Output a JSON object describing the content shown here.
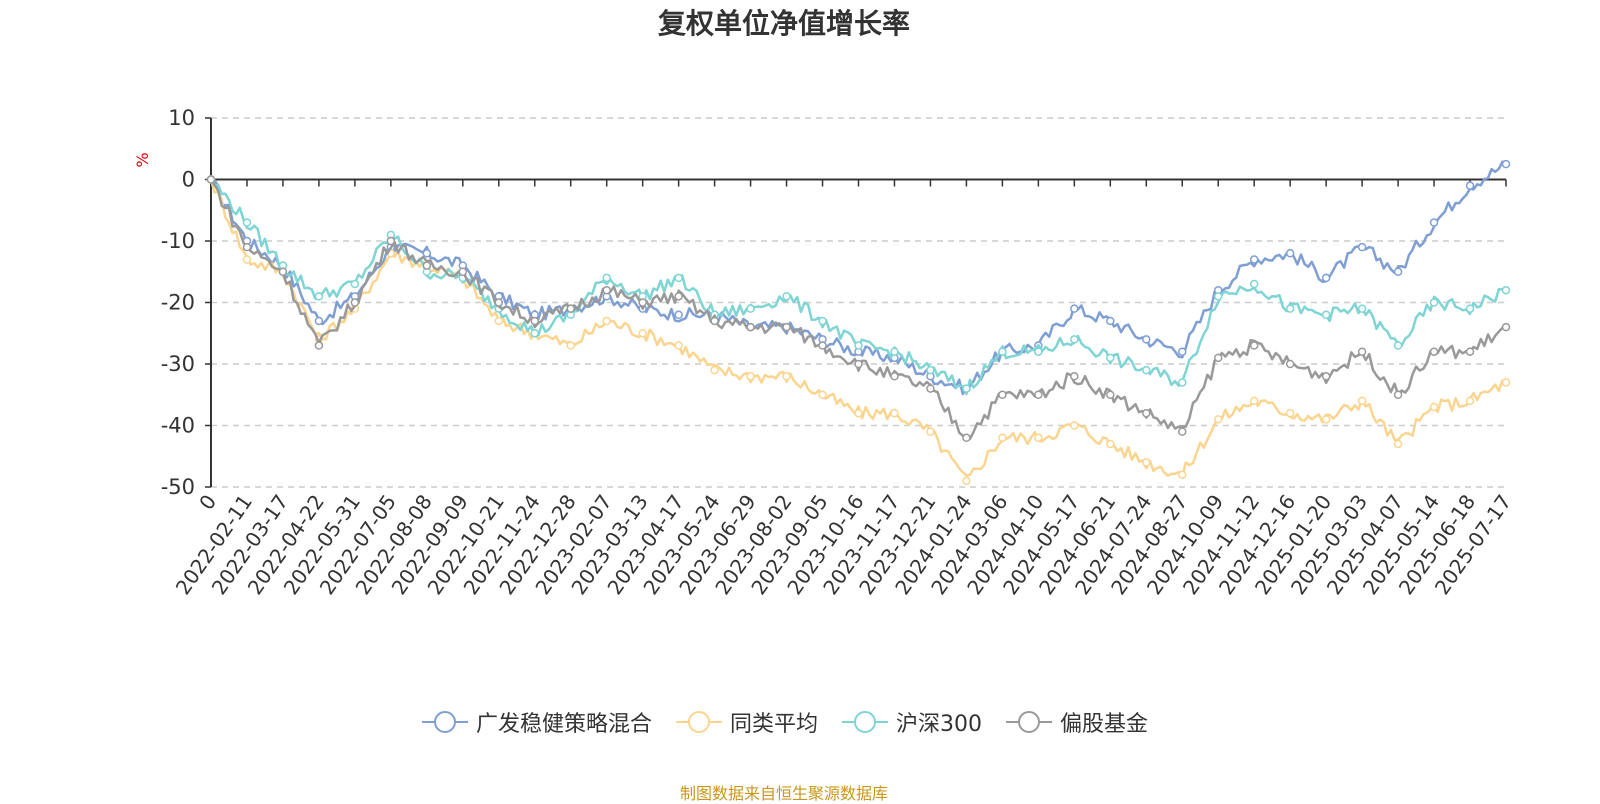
{
  "title": "复权单位净值增长率",
  "source_note": "制图数据来自恒生聚源数据库",
  "chart_data": {
    "type": "line",
    "title": "复权单位净值增长率",
    "ylabel": "%",
    "ylim": [
      -50,
      10
    ],
    "yticks": [
      10,
      0,
      -10,
      -20,
      -30,
      -40,
      -50
    ],
    "grid": true,
    "legend_position": "bottom",
    "categories": [
      "0",
      "2022-02-11",
      "2022-03-17",
      "2022-04-22",
      "2022-05-31",
      "2022-07-05",
      "2022-08-08",
      "2022-09-09",
      "2022-10-21",
      "2022-11-24",
      "2022-12-28",
      "2023-02-07",
      "2023-03-13",
      "2023-04-17",
      "2023-05-24",
      "2023-06-29",
      "2023-08-02",
      "2023-09-05",
      "2023-10-16",
      "2023-11-17",
      "2023-12-21",
      "2024-01-24",
      "2024-03-06",
      "2024-04-10",
      "2024-05-17",
      "2024-06-21",
      "2024-07-24",
      "2024-08-27",
      "2024-10-09",
      "2024-11-12",
      "2024-12-16",
      "2025-01-20",
      "2025-03-03",
      "2025-04-07",
      "2025-05-14",
      "2025-06-18",
      "2025-07-17"
    ],
    "series": [
      {
        "name": "广发稳健策略混合",
        "color": "#7f9fd4",
        "values": [
          0,
          -10,
          -14,
          -23,
          -19,
          -11,
          -12,
          -14,
          -19,
          -22,
          -21,
          -19,
          -21,
          -22,
          -22,
          -24,
          -24,
          -26,
          -28,
          -29,
          -32,
          -34,
          -28,
          -27,
          -21,
          -23,
          -26,
          -28,
          -18,
          -13,
          -12,
          -16,
          -11,
          -15,
          -7,
          -1,
          2.5
        ]
      },
      {
        "name": "同类平均",
        "color": "#fbd58f",
        "values": [
          0,
          -13,
          -15,
          -26,
          -21,
          -12,
          -14,
          -16,
          -23,
          -25,
          -27,
          -23,
          -25,
          -27,
          -31,
          -32,
          -32,
          -35,
          -38,
          -38,
          -41,
          -49,
          -42,
          -42,
          -40,
          -43,
          -46,
          -48,
          -39,
          -36,
          -38,
          -39,
          -36,
          -43,
          -37,
          -36,
          -33
        ]
      },
      {
        "name": "沪深300",
        "color": "#7fd4d4",
        "values": [
          0,
          -7,
          -14,
          -19,
          -17,
          -9,
          -15,
          -16,
          -21,
          -25,
          -22,
          -16,
          -19,
          -16,
          -22,
          -21,
          -19,
          -23,
          -27,
          -28,
          -31,
          -34,
          -28,
          -28,
          -26,
          -29,
          -31,
          -33,
          -19,
          -17,
          -21,
          -22,
          -21,
          -27,
          -20,
          -21,
          -18
        ]
      },
      {
        "name": "偏股基金",
        "color": "#999999",
        "values": [
          0,
          -11,
          -15,
          -27,
          -20,
          -10,
          -14,
          -15,
          -20,
          -23,
          -21,
          -18,
          -20,
          -19,
          -23,
          -24,
          -24,
          -27,
          -30,
          -32,
          -34,
          -42,
          -35,
          -35,
          -32,
          -35,
          -38,
          -41,
          -29,
          -27,
          -30,
          -32,
          -28,
          -35,
          -28,
          -28,
          -24
        ]
      }
    ]
  }
}
